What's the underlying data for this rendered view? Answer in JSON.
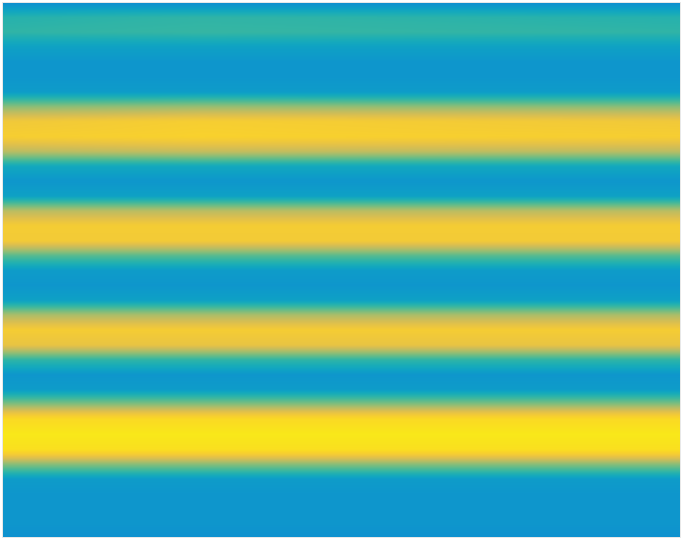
{
  "chart_data": {
    "type": "heatmap",
    "x": [
      0,
      200,
      682
    ],
    "y": [
      0,
      15,
      30,
      45,
      60,
      75,
      90,
      105,
      120,
      135,
      150,
      165,
      180,
      195,
      210,
      225,
      240,
      255,
      270,
      285,
      300,
      315,
      330,
      345,
      360,
      375,
      390,
      405,
      420,
      435,
      450,
      465,
      480,
      495,
      510,
      525,
      539
    ],
    "cells": [
      [
        0.25,
        0.25,
        0.25
      ],
      [
        0.4,
        0.42,
        0.4
      ],
      [
        0.42,
        0.43,
        0.42
      ],
      [
        0.32,
        0.32,
        0.32
      ],
      [
        0.28,
        0.28,
        0.28
      ],
      [
        0.28,
        0.28,
        0.28
      ],
      [
        0.3,
        0.3,
        0.3
      ],
      [
        0.55,
        0.57,
        0.55
      ],
      [
        0.75,
        0.78,
        0.75
      ],
      [
        0.78,
        0.8,
        0.78
      ],
      [
        0.62,
        0.64,
        0.62
      ],
      [
        0.35,
        0.35,
        0.35
      ],
      [
        0.28,
        0.28,
        0.28
      ],
      [
        0.32,
        0.32,
        0.32
      ],
      [
        0.62,
        0.62,
        0.62
      ],
      [
        0.77,
        0.77,
        0.77
      ],
      [
        0.76,
        0.76,
        0.76
      ],
      [
        0.48,
        0.48,
        0.48
      ],
      [
        0.3,
        0.3,
        0.3
      ],
      [
        0.28,
        0.28,
        0.28
      ],
      [
        0.32,
        0.32,
        0.32
      ],
      [
        0.6,
        0.6,
        0.6
      ],
      [
        0.77,
        0.77,
        0.77
      ],
      [
        0.72,
        0.72,
        0.72
      ],
      [
        0.42,
        0.42,
        0.42
      ],
      [
        0.28,
        0.28,
        0.28
      ],
      [
        0.3,
        0.3,
        0.3
      ],
      [
        0.55,
        0.55,
        0.55
      ],
      [
        0.85,
        0.85,
        0.85
      ],
      [
        0.92,
        0.92,
        0.92
      ],
      [
        0.88,
        0.88,
        0.88
      ],
      [
        0.55,
        0.55,
        0.55
      ],
      [
        0.3,
        0.3,
        0.3
      ],
      [
        0.28,
        0.28,
        0.28
      ],
      [
        0.28,
        0.28,
        0.28
      ],
      [
        0.28,
        0.28,
        0.28
      ],
      [
        0.26,
        0.26,
        0.26
      ]
    ],
    "clim": [
      0,
      1
    ],
    "xlim": [
      0,
      682
    ],
    "ylim": [
      539,
      0
    ],
    "tick_labels": false
  }
}
